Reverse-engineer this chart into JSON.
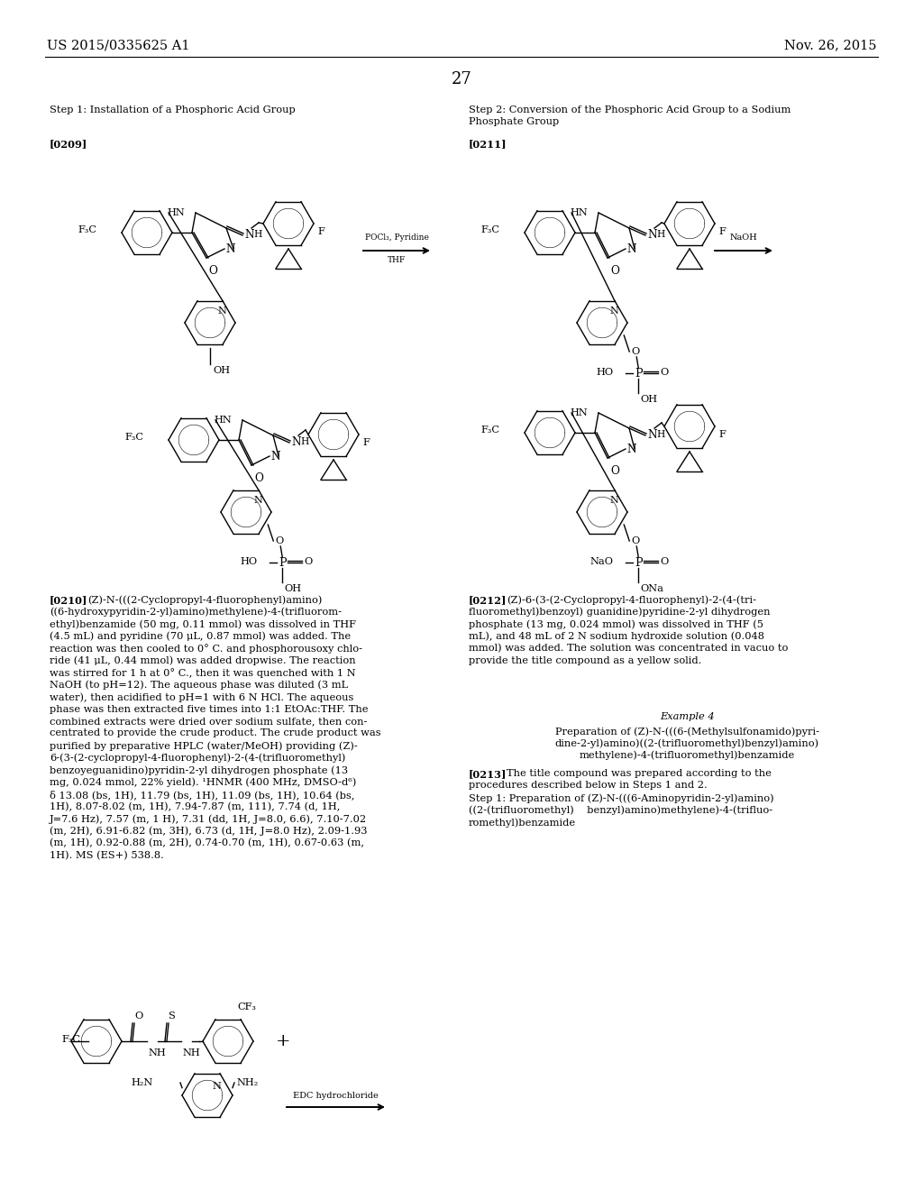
{
  "page_number": "27",
  "header_left": "US 2015/0335625 A1",
  "header_right": "Nov. 26, 2015",
  "background_color": "#ffffff",
  "text_color": "#000000",
  "font_size_header": 10.5,
  "font_size_body": 8.2,
  "font_size_page_num": 13,
  "step1_title": "Step 1: Installation of a Phosphoric Acid Group",
  "step2_title_line1": "Step 2: Conversion of the Phosphoric Acid Group to a Sodium",
  "step2_title_line2": "Phosphate Group",
  "para_0209": "[0209]",
  "para_0211": "[0211]",
  "para_0210_label": "[0210]",
  "para_0210_text": "   (Z)-N-(((2-Cyclopropyl-4-fluorophenyl)amino)\n((6-hydroxypyridin-2-yl)amino)methylene)-4-(trifluorom-\nethyl)benzamide (50 mg, 0.11 mmol) was dissolved in THF\n(4.5 mL) and pyridine (70 μL, 0.87 mmol) was added. The\nreaction was then cooled to 0° C. and phosphorousoxy chlo-\nride (41 μL, 0.44 mmol) was added dropwise. The reaction\nwas stirred for 1 h at 0° C., then it was quenched with 1 N\nNaOH (to pH=12). The aqueous phase was diluted (3 mL\nwater), then acidified to pH=1 with 6 N HCl. The aqueous\nphase was then extracted five times into 1:1 EtOAc:THF. The\ncombined extracts were dried over sodium sulfate, then con-\ncentrated to provide the crude product. The crude product was\npurified by preparative HPLC (water/MeOH) providing (Z)-\n6-(3-(2-cyclopropyl-4-fluorophenyl)-2-(4-(trifluoromethyl)\nbenzoyeguanidino)pyridin-2-yl dihydrogen phosphate (13\nmg, 0.024 mmol, 22% yield). ¹HNMR (400 MHz, DMSO-d⁶)\nδ 13.08 (bs, 1H), 11.79 (bs, 1H), 11.09 (bs, 1H), 10.64 (bs,\n1H), 8.07-8.02 (m, 1H), 7.94-7.87 (m, 111), 7.74 (d, 1H,\nJ=7.6 Hz), 7.57 (m, 1 H), 7.31 (dd, 1H, J=8.0, 6.6), 7.10-7.02\n(m, 2H), 6.91-6.82 (m, 3H), 6.73 (d, 1H, J=8.0 Hz), 2.09-1.93\n(m, 1H), 0.92-0.88 (m, 2H), 0.74-0.70 (m, 1H), 0.67-0.63 (m,\n1H). MS (ES+) 538.8.",
  "para_0212_label": "[0212]",
  "para_0212_text": "   (Z)-6-(3-(2-Cyclopropyl-4-fluorophenyl)-2-(4-(tri-\nfluoromethyl)benzoyl) guanidine)pyridine-2-yl dihydrogen\nphosphate (13 mg, 0.024 mmol) was dissolved in THF (5\nmL), and 48 mL of 2 N sodium hydroxide solution (0.048\nmmol) was added. The solution was concentrated in vacuo to\nprovide the title compound as a yellow solid.",
  "example4_title": "Example 4",
  "example4_prep_line1": "Preparation of (Z)-N-(((6-(Methylsulfonamido)pyri-",
  "example4_prep_line2": "dine-2-yl)amino)((2-(trifluoromethyl)benzyl)amino)",
  "example4_prep_line3": "methylene)-4-(trifluoromethyl)benzamide",
  "para_0213_label": "[0213]",
  "para_0213_line1": "   The title compound was prepared according to the",
  "para_0213_line2": "procedures described below in Steps 1 and 2.",
  "para_0213_line3": "Step 1: Preparation of (Z)-N-(((6-Aminopyridin-2-yl)amino)",
  "para_0213_line4": "((2-(trifluoromethyl)    benzyl)amino)methylene)-4-(trifluo-",
  "para_0213_line5": "romethyl)benzamide"
}
